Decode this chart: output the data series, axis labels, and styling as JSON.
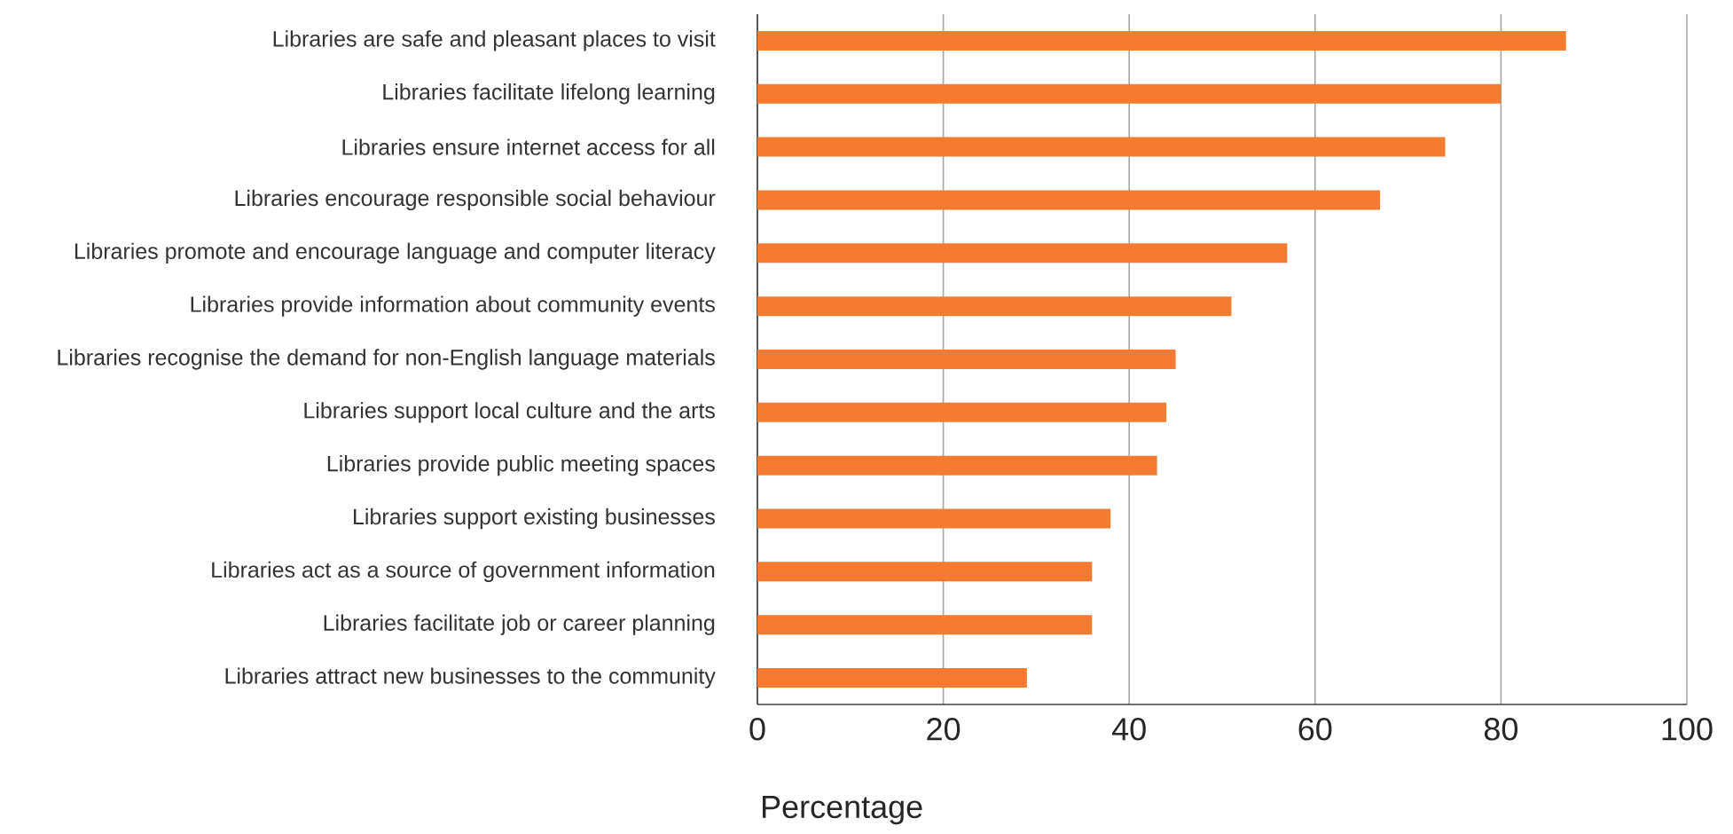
{
  "chart_data": {
    "type": "bar",
    "orientation": "horizontal",
    "xlabel": "Percentage",
    "categories": [
      "Libraries are safe and pleasant places to visit",
      "Libraries facilitate lifelong learning",
      "Libraries ensure internet access for all",
      "Libraries encourage responsible social behaviour",
      "Libraries promote and encourage language and computer literacy",
      "Libraries provide information about community events",
      "Libraries recognise the demand for non-English language materials",
      "Libraries support local culture and the arts",
      "Libraries provide public meeting spaces",
      "Libraries support existing businesses",
      "Libraries act as a source of government information",
      "Libraries facilitate job or career planning",
      "Libraries attract new businesses to the community"
    ],
    "values": [
      87,
      80,
      74,
      67,
      57,
      51,
      45,
      44,
      43,
      38,
      36,
      36,
      29
    ],
    "color": "#f47b30",
    "xlim": [
      0,
      100
    ],
    "xticks": [
      0,
      20,
      40,
      60,
      80,
      100
    ],
    "grid": "x"
  }
}
